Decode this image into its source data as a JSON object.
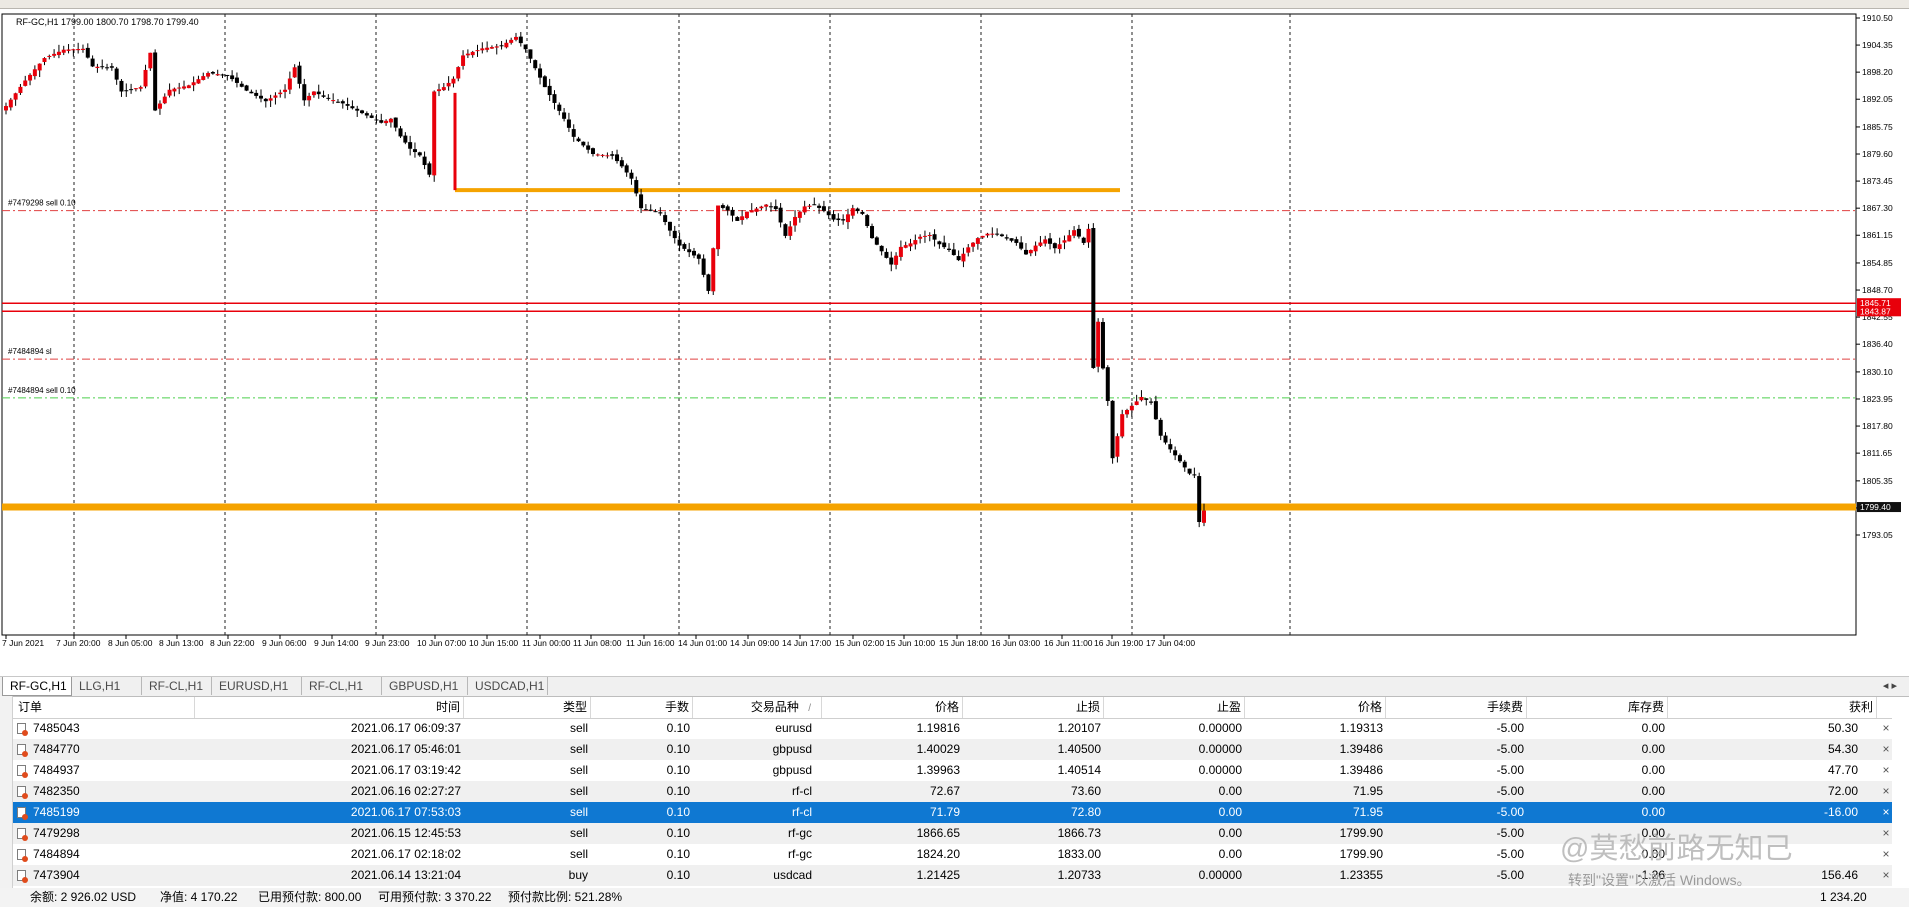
{
  "chart_title": "RF-GC,H1  1799.00 1800.70 1798.70 1799.40",
  "chart_data": {
    "type": "candlestick",
    "symbol": "RF-GC,H1",
    "ohlc_header": "1799.00 1800.70 1798.70 1799.40",
    "ylim": [
      1790.3,
      1912.2
    ],
    "y_ticks": [
      "1910.50",
      "1904.35",
      "1898.20",
      "1892.05",
      "1885.75",
      "1879.60",
      "1873.45",
      "1867.30",
      "1861.15",
      "1854.85",
      "1848.70",
      "1842.55",
      "1836.40",
      "1830.10",
      "1823.95",
      "1817.80",
      "1811.65",
      "1805.35",
      "1799.20",
      "1793.05"
    ],
    "x_labels": [
      "7 Jun 2021",
      "7 Jun 20:00",
      "8 Jun 05:00",
      "8 Jun 13:00",
      "8 Jun 22:00",
      "9 Jun 06:00",
      "9 Jun 14:00",
      "9 Jun 23:00",
      "10 Jun 07:00",
      "10 Jun 15:00",
      "11 Jun 00:00",
      "11 Jun 08:00",
      "11 Jun 16:00",
      "14 Jun 01:00",
      "14 Jun 09:00",
      "14 Jun 17:00",
      "15 Jun 02:00",
      "15 Jun 10:00",
      "15 Jun 18:00",
      "16 Jun 03:00",
      "16 Jun 11:00",
      "16 Jun 19:00",
      "17 Jun 04:00"
    ],
    "bull_color": "#e8000b",
    "bear_color": "#000000",
    "horizontal_lines": [
      {
        "price": 1866.73,
        "label": "#7479298 sell 0.10",
        "color": "#e04040",
        "style": "dashdot"
      },
      {
        "price": 1833.0,
        "label": "#7484894 sl",
        "color": "#e04040",
        "style": "dashdot"
      },
      {
        "price": 1824.2,
        "label": "#7484894 sell 0.10",
        "color": "#4ccf4c",
        "style": "dashdot"
      },
      {
        "price": 1845.71,
        "label": "1845.71",
        "color": "#e8000b",
        "style": "solid"
      },
      {
        "price": 1843.87,
        "label": "1843.87",
        "color": "#e8000b",
        "style": "solid"
      },
      {
        "price": 1799.4,
        "label": "1799.40",
        "color": "#f5a300",
        "style": "thick"
      }
    ],
    "trend_lines": [
      {
        "from": "10 Jun 07:00",
        "to": "16 Jun 10:00",
        "price": 1871.4,
        "color": "#f5a300"
      }
    ],
    "price_labels": [
      {
        "price": 1845.71,
        "text": "1845.71"
      },
      {
        "price": 1843.87,
        "text": "1843.87"
      },
      {
        "price": 1799.4,
        "text": "1799.40"
      }
    ],
    "close_path": [
      [
        0,
        1890.5
      ],
      [
        4,
        1896.3
      ],
      [
        8,
        1901.4
      ],
      [
        12,
        1903.3
      ],
      [
        16,
        1903.5
      ],
      [
        18,
        1899.5
      ],
      [
        22,
        1899.2
      ],
      [
        24,
        1893.8
      ],
      [
        28,
        1894.8
      ],
      [
        30,
        1902.6
      ],
      [
        31,
        1889.5
      ],
      [
        34,
        1894.2
      ],
      [
        38,
        1895.2
      ],
      [
        42,
        1898.0
      ],
      [
        46,
        1897.5
      ],
      [
        50,
        1894.0
      ],
      [
        54,
        1891.6
      ],
      [
        58,
        1894.2
      ],
      [
        60,
        1899.3
      ],
      [
        62,
        1891.8
      ],
      [
        64,
        1893.8
      ],
      [
        66,
        1892.6
      ],
      [
        70,
        1891.1
      ],
      [
        74,
        1888.9
      ],
      [
        78,
        1886.7
      ],
      [
        80,
        1887.6
      ],
      [
        82,
        1883.6
      ],
      [
        84,
        1880.8
      ],
      [
        86,
        1879.3
      ],
      [
        88,
        1874.9
      ],
      [
        89,
        1893.8
      ],
      [
        91,
        1894.8
      ],
      [
        93,
        1896.7
      ],
      [
        95,
        1902.0
      ],
      [
        99,
        1903.6
      ],
      [
        103,
        1904.2
      ],
      [
        106,
        1906.2
      ],
      [
        108,
        1903.4
      ],
      [
        112,
        1894.8
      ],
      [
        116,
        1887.6
      ],
      [
        118,
        1883.5
      ],
      [
        122,
        1879.6
      ],
      [
        126,
        1879.2
      ],
      [
        128,
        1876.8
      ],
      [
        130,
        1874.0
      ],
      [
        132,
        1867.3
      ],
      [
        136,
        1866.1
      ],
      [
        138,
        1862.2
      ],
      [
        140,
        1858.8
      ],
      [
        144,
        1855.8
      ],
      [
        146,
        1848.5
      ],
      [
        148,
        1867.9
      ],
      [
        150,
        1866.8
      ],
      [
        152,
        1864.4
      ],
      [
        154,
        1866.5
      ],
      [
        156,
        1867.2
      ],
      [
        158,
        1868.1
      ],
      [
        160,
        1867.1
      ],
      [
        162,
        1861.0
      ],
      [
        164,
        1865.3
      ],
      [
        166,
        1867.7
      ],
      [
        168,
        1868.0
      ],
      [
        170,
        1866.7
      ],
      [
        172,
        1864.7
      ],
      [
        174,
        1864.5
      ],
      [
        176,
        1867.3
      ],
      [
        178,
        1866.0
      ],
      [
        180,
        1860.5
      ],
      [
        182,
        1857.5
      ],
      [
        184,
        1854.5
      ],
      [
        186,
        1858.5
      ],
      [
        188,
        1859.3
      ],
      [
        190,
        1860.8
      ],
      [
        192,
        1861.2
      ],
      [
        194,
        1859.1
      ],
      [
        196,
        1857.8
      ],
      [
        198,
        1855.5
      ],
      [
        200,
        1858.4
      ],
      [
        202,
        1860.5
      ],
      [
        204,
        1861.5
      ],
      [
        206,
        1861.5
      ],
      [
        208,
        1860.4
      ],
      [
        210,
        1859.4
      ],
      [
        212,
        1856.8
      ],
      [
        214,
        1858.8
      ],
      [
        216,
        1860.2
      ],
      [
        218,
        1858.2
      ],
      [
        220,
        1860.0
      ],
      [
        222,
        1862.3
      ],
      [
        224,
        1859.4
      ],
      [
        225,
        1862.6
      ],
      [
        226,
        1831.0
      ],
      [
        227,
        1841.5
      ],
      [
        228,
        1830.9
      ],
      [
        229,
        1823.5
      ],
      [
        230,
        1810.5
      ],
      [
        232,
        1820.5
      ],
      [
        234,
        1822.4
      ],
      [
        236,
        1824.4
      ],
      [
        238,
        1823.1
      ],
      [
        240,
        1815.6
      ],
      [
        242,
        1812.5
      ],
      [
        244,
        1809.8
      ],
      [
        246,
        1807.0
      ],
      [
        247,
        1806.7
      ],
      [
        248,
        1796.0
      ],
      [
        249,
        1798.6
      ]
    ]
  },
  "terminal": {
    "tabs": [
      {
        "label": "RF-GC,H1",
        "active": true
      },
      {
        "label": "LLG,H1",
        "active": false
      },
      {
        "label": "RF-CL,H1",
        "active": false
      },
      {
        "label": "EURUSD,H1",
        "active": false
      },
      {
        "label": "RF-CL,H1",
        "active": false
      },
      {
        "label": "GBPUSD,H1",
        "active": false
      },
      {
        "label": "USDCAD,H1",
        "active": false
      }
    ],
    "scroll_arrows": "◂ ▸",
    "columns": {
      "order": "订单",
      "time": "时间",
      "type": "类型",
      "size": "手数",
      "symbol": "交易品种",
      "symbol_sort": "/",
      "price": "价格",
      "sl": "止损",
      "tp": "止盈",
      "cur_price": "价格",
      "commission": "手续费",
      "swap": "库存费",
      "profit": "获利"
    },
    "rows": [
      {
        "order": "7485043",
        "time": "2021.06.17 06:09:37",
        "type": "sell",
        "size": "0.10",
        "symbol": "eurusd",
        "price": "1.19816",
        "sl": "1.20107",
        "tp": "0.00000",
        "cur_price": "1.19313",
        "commission": "-5.00",
        "swap": "0.00",
        "profit": "50.30",
        "selected": false
      },
      {
        "order": "7484770",
        "time": "2021.06.17 05:46:01",
        "type": "sell",
        "size": "0.10",
        "symbol": "gbpusd",
        "price": "1.40029",
        "sl": "1.40500",
        "tp": "0.00000",
        "cur_price": "1.39486",
        "commission": "-5.00",
        "swap": "0.00",
        "profit": "54.30",
        "selected": false
      },
      {
        "order": "7484937",
        "time": "2021.06.17 03:19:42",
        "type": "sell",
        "size": "0.10",
        "symbol": "gbpusd",
        "price": "1.39963",
        "sl": "1.40514",
        "tp": "0.00000",
        "cur_price": "1.39486",
        "commission": "-5.00",
        "swap": "0.00",
        "profit": "47.70",
        "selected": false
      },
      {
        "order": "7482350",
        "time": "2021.06.16 02:27:27",
        "type": "sell",
        "size": "0.10",
        "symbol": "rf-cl",
        "price": "72.67",
        "sl": "73.60",
        "tp": "0.00",
        "cur_price": "71.95",
        "commission": "-5.00",
        "swap": "0.00",
        "profit": "72.00",
        "selected": false
      },
      {
        "order": "7485199",
        "time": "2021.06.17 07:53:03",
        "type": "sell",
        "size": "0.10",
        "symbol": "rf-cl",
        "price": "71.79",
        "sl": "72.80",
        "tp": "0.00",
        "cur_price": "71.95",
        "commission": "-5.00",
        "swap": "0.00",
        "profit": "-16.00",
        "selected": true
      },
      {
        "order": "7479298",
        "time": "2021.06.15 12:45:53",
        "type": "sell",
        "size": "0.10",
        "symbol": "rf-gc",
        "price": "1866.65",
        "sl": "1866.73",
        "tp": "0.00",
        "cur_price": "1799.90",
        "commission": "-5.00",
        "swap": "0.00",
        "profit": "",
        "selected": false
      },
      {
        "order": "7484894",
        "time": "2021.06.17 02:18:02",
        "type": "sell",
        "size": "0.10",
        "symbol": "rf-gc",
        "price": "1824.20",
        "sl": "1833.00",
        "tp": "0.00",
        "cur_price": "1799.90",
        "commission": "-5.00",
        "swap": "0.00",
        "profit": "",
        "selected": false
      },
      {
        "order": "7473904",
        "time": "2021.06.14 13:21:04",
        "type": "buy",
        "size": "0.10",
        "symbol": "usdcad",
        "price": "1.21425",
        "sl": "1.20733",
        "tp": "0.00000",
        "cur_price": "1.23355",
        "commission": "-5.00",
        "swap": "-1.26",
        "profit": "156.46",
        "selected": false
      }
    ],
    "close_glyph": "×",
    "status": {
      "balance": "余额: 2 926.02 USD",
      "equity": "净值: 4 170.22",
      "margin": "已用预付款: 800.00",
      "free_margin": "可用预付款: 3 370.22",
      "margin_level": "预付款比例: 521.28%",
      "total_profit": "1 234.20"
    }
  },
  "overlays": {
    "watermark": "@莫愁前路无知己",
    "activate_windows": "转到\"设置\"以激活 Windows。"
  }
}
